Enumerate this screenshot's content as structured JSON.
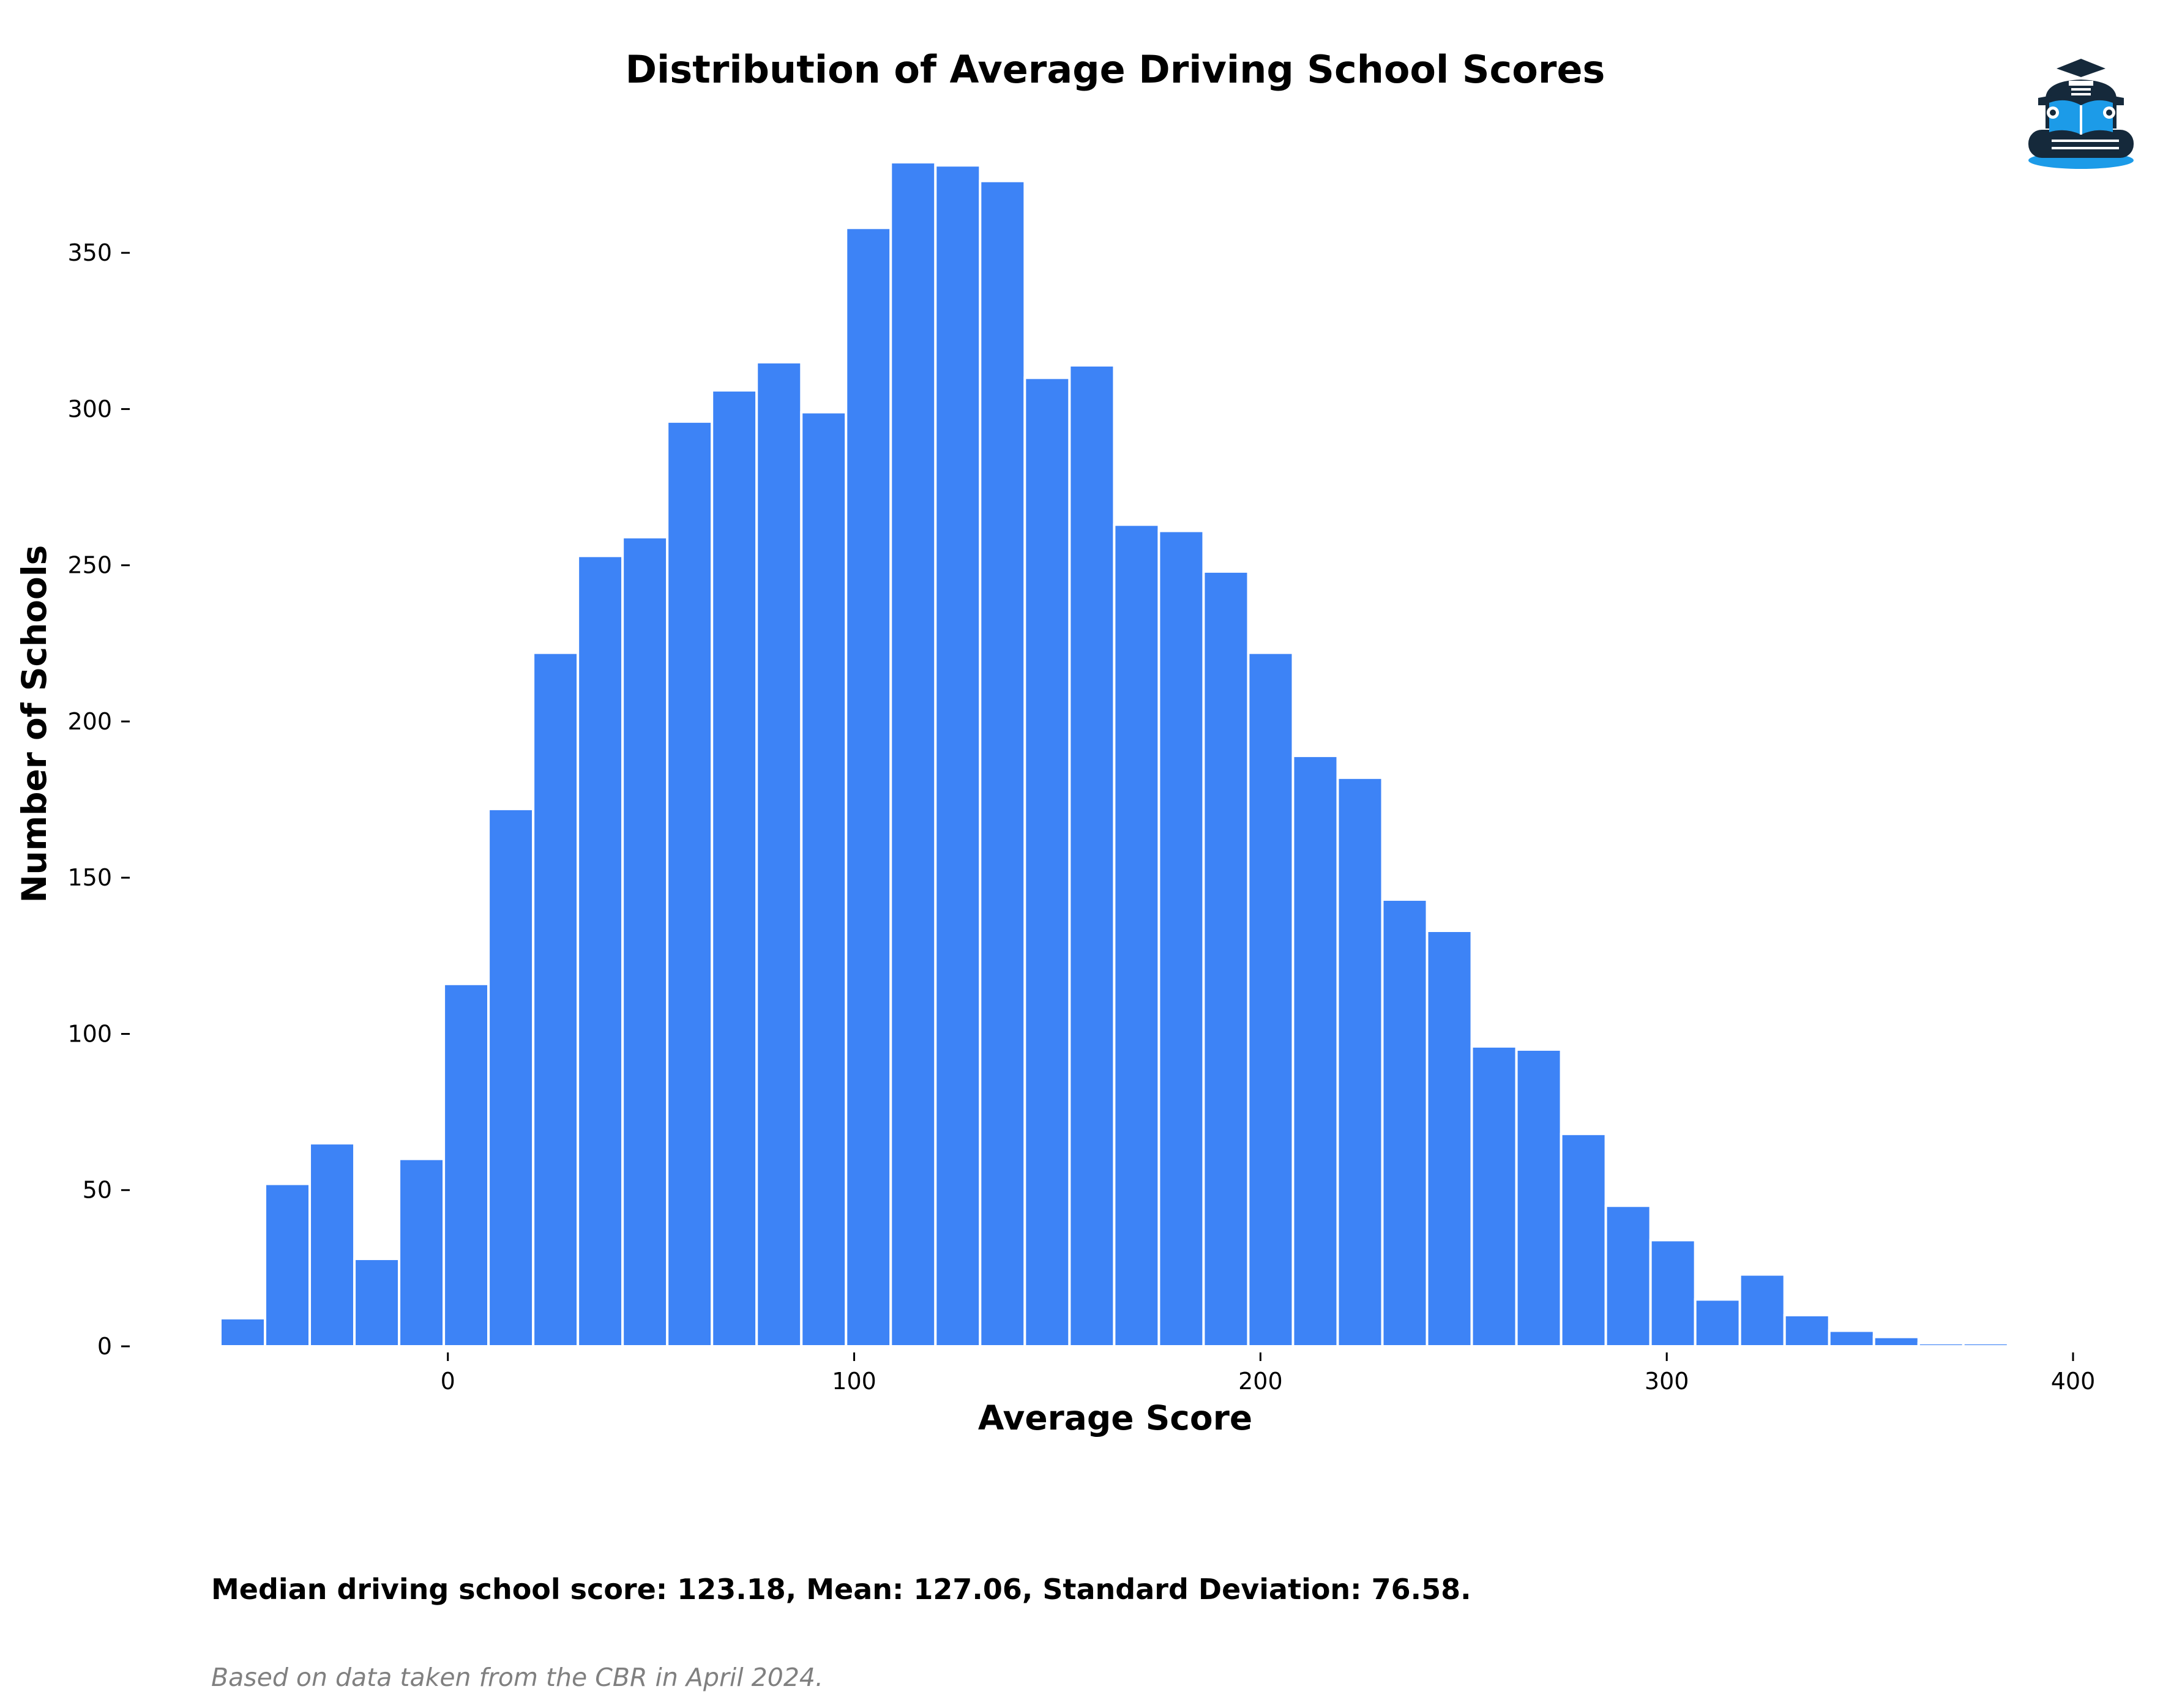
{
  "chart_data": {
    "type": "bar",
    "title": "Distribution of Average Driving School Scores",
    "xlabel": "Average Score",
    "ylabel": "Number of Schools",
    "bins": [
      {
        "x0": -56,
        "x1": -45,
        "count": 9
      },
      {
        "x0": -45,
        "x1": -34,
        "count": 52
      },
      {
        "x0": -34,
        "x1": -23,
        "count": 65
      },
      {
        "x0": -23,
        "x1": -12,
        "count": 28
      },
      {
        "x0": -12,
        "x1": -1,
        "count": 60
      },
      {
        "x0": -1,
        "x1": 10,
        "count": 116
      },
      {
        "x0": 10,
        "x1": 21,
        "count": 172
      },
      {
        "x0": 21,
        "x1": 32,
        "count": 222
      },
      {
        "x0": 32,
        "x1": 43,
        "count": 253
      },
      {
        "x0": 43,
        "x1": 54,
        "count": 259
      },
      {
        "x0": 54,
        "x1": 65,
        "count": 296
      },
      {
        "x0": 65,
        "x1": 76,
        "count": 306
      },
      {
        "x0": 76,
        "x1": 87,
        "count": 315
      },
      {
        "x0": 87,
        "x1": 98,
        "count": 299
      },
      {
        "x0": 98,
        "x1": 109,
        "count": 358
      },
      {
        "x0": 109,
        "x1": 120,
        "count": 379
      },
      {
        "x0": 120,
        "x1": 131,
        "count": 378
      },
      {
        "x0": 131,
        "x1": 142,
        "count": 373
      },
      {
        "x0": 142,
        "x1": 153,
        "count": 310
      },
      {
        "x0": 153,
        "x1": 164,
        "count": 314
      },
      {
        "x0": 164,
        "x1": 175,
        "count": 263
      },
      {
        "x0": 175,
        "x1": 186,
        "count": 261
      },
      {
        "x0": 186,
        "x1": 197,
        "count": 248
      },
      {
        "x0": 197,
        "x1": 208,
        "count": 222
      },
      {
        "x0": 208,
        "x1": 219,
        "count": 189
      },
      {
        "x0": 219,
        "x1": 230,
        "count": 182
      },
      {
        "x0": 230,
        "x1": 241,
        "count": 143
      },
      {
        "x0": 241,
        "x1": 252,
        "count": 133
      },
      {
        "x0": 252,
        "x1": 263,
        "count": 96
      },
      {
        "x0": 263,
        "x1": 274,
        "count": 95
      },
      {
        "x0": 274,
        "x1": 285,
        "count": 68
      },
      {
        "x0": 285,
        "x1": 296,
        "count": 45
      },
      {
        "x0": 296,
        "x1": 307,
        "count": 34
      },
      {
        "x0": 307,
        "x1": 318,
        "count": 15
      },
      {
        "x0": 318,
        "x1": 329,
        "count": 23
      },
      {
        "x0": 329,
        "x1": 340,
        "count": 10
      },
      {
        "x0": 340,
        "x1": 351,
        "count": 5
      },
      {
        "x0": 351,
        "x1": 362,
        "count": 3
      },
      {
        "x0": 362,
        "x1": 373,
        "count": 1
      },
      {
        "x0": 373,
        "x1": 384,
        "count": 1
      }
    ],
    "xlim": [
      -56,
      400
    ],
    "ylim": [
      0,
      380
    ],
    "xticks": [
      0,
      100,
      200,
      300,
      400
    ],
    "yticks": [
      0,
      50,
      100,
      150,
      200,
      250,
      300,
      350
    ],
    "bar_color": "#3d83f6",
    "edge_color": "#ffffff",
    "grid": false,
    "legend": "none"
  },
  "summary": {
    "stats": "Median driving school score: 123.18, Mean: 127.06, Standard Deviation: 76.58.",
    "source": "Based on data taken from the CBR in April 2024."
  },
  "logo": {
    "icon": "driving-school-logo-icon",
    "colors": {
      "dark": "#15293b",
      "accent": "#1c9be8"
    }
  }
}
